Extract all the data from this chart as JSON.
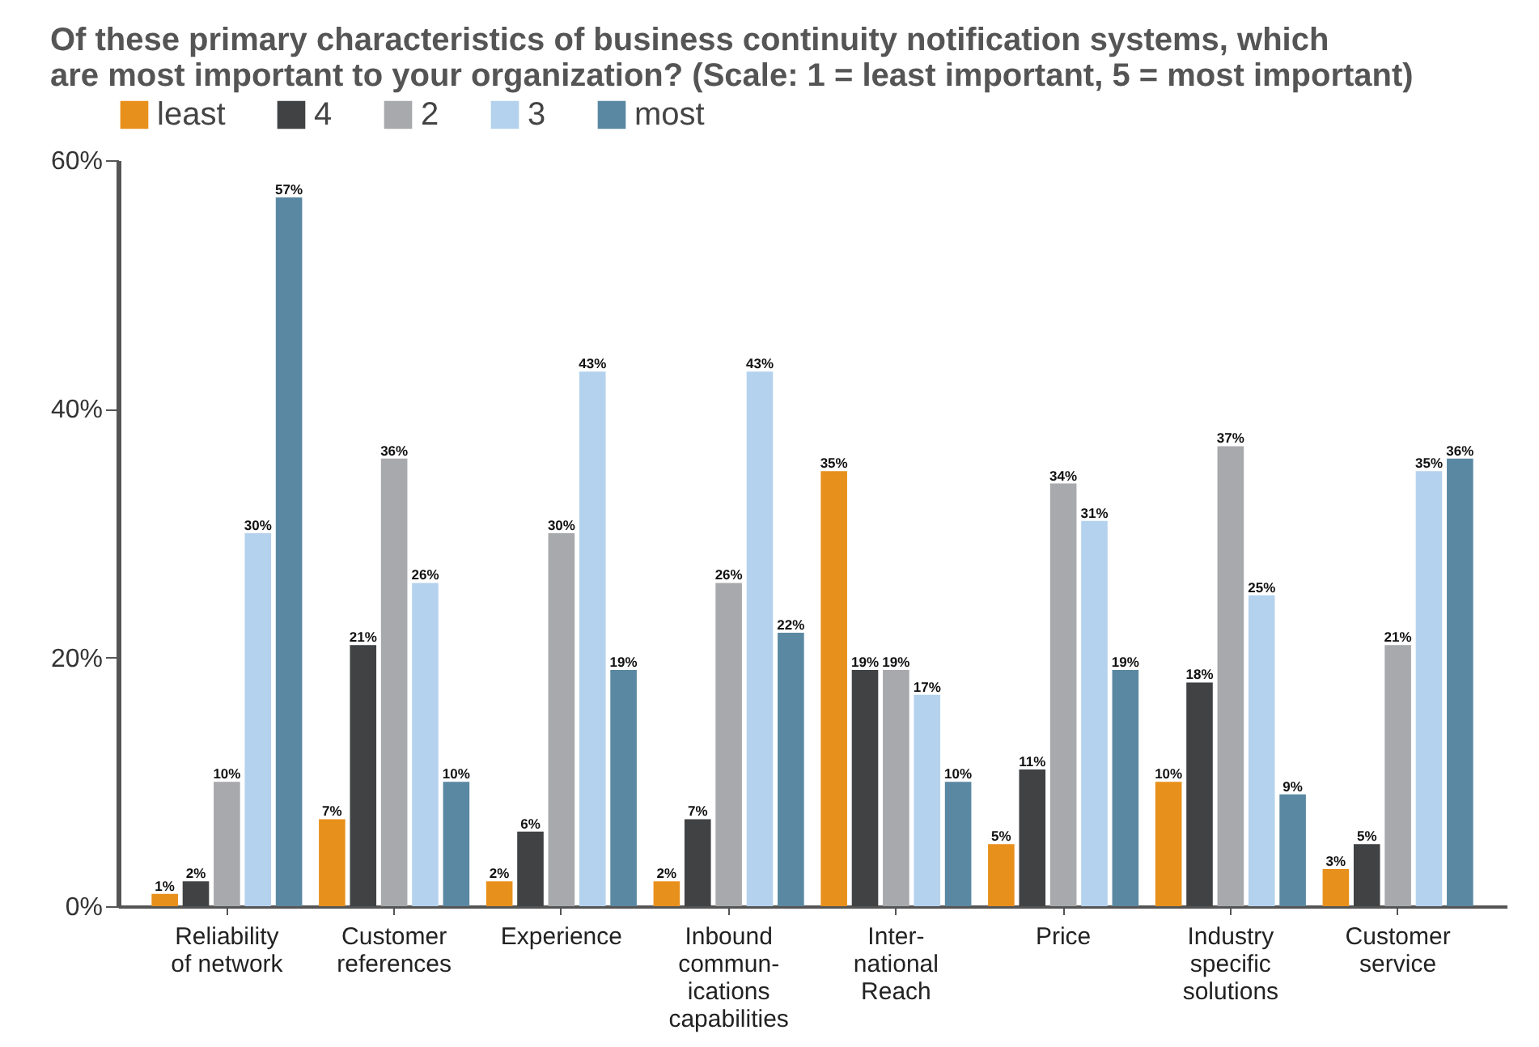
{
  "chart_data": {
    "type": "bar",
    "title": [
      "Of these primary characteristics of business continuity notification systems, which",
      "are most important to your organization? (Scale: 1 = least important, 5 = most important)"
    ],
    "categories": [
      "Reliability\nof network",
      "Customer\nreferences",
      "Experience",
      "Inbound\ncommun-\nications\ncapabilities",
      "Inter-\nnational\nReach",
      "Price",
      "Industry\nspecific\nsolutions",
      "Customer\nservice"
    ],
    "series": [
      {
        "name": "least",
        "color": "#e8901c",
        "values": [
          1,
          7,
          2,
          2,
          35,
          5,
          10,
          3
        ],
        "value_labels": [
          "1%",
          "7%",
          "2%",
          "2%",
          "35%",
          "5%",
          "10%",
          "3%"
        ]
      },
      {
        "name": "4",
        "color": "#404244",
        "values": [
          2,
          21,
          6,
          7,
          19,
          11,
          18,
          5
        ],
        "value_labels": [
          "2%",
          "21%",
          "6%",
          "7%",
          "19%",
          "11%",
          "18%",
          "5%"
        ]
      },
      {
        "name": "2",
        "color": "#a7a9ac",
        "values": [
          10,
          36,
          30,
          26,
          19,
          34,
          37,
          21
        ],
        "value_labels": [
          "10%",
          "36%",
          "30%",
          "26%",
          "19%",
          "34%",
          "37%",
          "21%"
        ]
      },
      {
        "name": "3",
        "color": "#b4d2ee",
        "values": [
          30,
          26,
          43,
          43,
          17,
          31,
          25,
          35
        ],
        "value_labels": [
          "30%",
          "26%",
          "43%",
          "43%",
          "17%",
          "31%",
          "25%",
          "35%"
        ]
      },
      {
        "name": "most",
        "color": "#5a88a2",
        "values": [
          57,
          10,
          19,
          22,
          10,
          19,
          9,
          36
        ],
        "value_labels": [
          "57%",
          "10%",
          "19%",
          "22%",
          "10%",
          "19%",
          "9%",
          "36%"
        ]
      }
    ],
    "ylim": [
      0,
      60
    ],
    "yticks": [
      {
        "value": 0,
        "label": "0%"
      },
      {
        "value": 20,
        "label": "20%"
      },
      {
        "value": 40,
        "label": "40%"
      },
      {
        "value": 60,
        "label": "60%"
      }
    ],
    "grid": false,
    "legend": "top"
  }
}
